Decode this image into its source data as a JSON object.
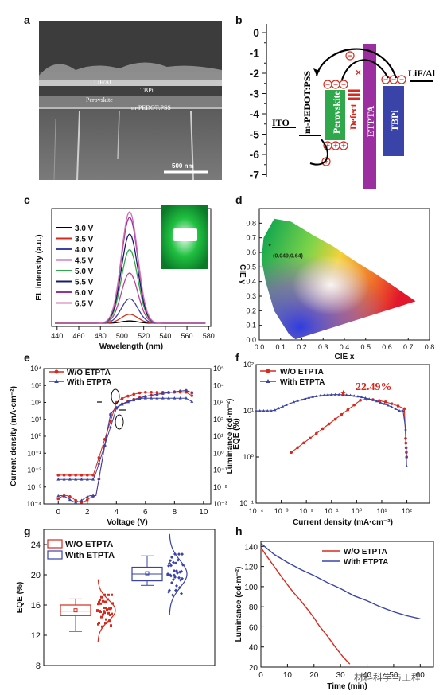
{
  "panel_labels": [
    "a",
    "b",
    "c",
    "d",
    "e",
    "f",
    "g",
    "h"
  ],
  "sem": {
    "labels": [
      "LiF/Al",
      "TBPi",
      "Perovskite",
      "m-PEDOT:PSS"
    ],
    "scale_bar": "500 nm",
    "colors": {
      "bg": "#5a5a5a",
      "layer": "#8a8a8a"
    }
  },
  "energy_diagram": {
    "y_ticks": [
      "0",
      "-1",
      "-2",
      "-3",
      "-4",
      "-5",
      "-6",
      "-7"
    ],
    "layers": [
      {
        "name": "ITO",
        "color": "#000000"
      },
      {
        "name": "m-PEDOT:PSS",
        "color": "#000000"
      },
      {
        "name": "Perovskite",
        "color": "#2ea84a"
      },
      {
        "name": "Defect",
        "color": "#d62a1e"
      },
      {
        "name": "ETPTA",
        "color": "#9b2fa0"
      },
      {
        "name": "TBPi",
        "color": "#3a43a8"
      },
      {
        "name": "LiF/Al",
        "color": "#000000"
      }
    ]
  },
  "chart_data": [
    {
      "id": "c",
      "type": "line",
      "xlabel": "Wavelength (nm)",
      "ylabel": "EL intensity (a.u.)",
      "xlim": [
        435,
        582
      ],
      "x_ticks": [
        440,
        460,
        480,
        500,
        520,
        540,
        560,
        580
      ],
      "peak_nm": 507,
      "fwhm_nm": 18,
      "series": [
        {
          "name": "3.0 V",
          "peak": 0.02,
          "color": "#000000"
        },
        {
          "name": "3.5 V",
          "peak": 0.08,
          "color": "#d62a1e"
        },
        {
          "name": "4.0 V",
          "peak": 0.22,
          "color": "#3a43a8"
        },
        {
          "name": "4.5 V",
          "peak": 0.45,
          "color": "#c0409a"
        },
        {
          "name": "5.0 V",
          "peak": 0.66,
          "color": "#2ea84a"
        },
        {
          "name": "5.5 V",
          "peak": 0.8,
          "color": "#1a1a6a"
        },
        {
          "name": "6.0 V",
          "peak": 0.95,
          "color": "#9b2fa0"
        },
        {
          "name": "6.5 V",
          "peak": 1.0,
          "color": "#d070b0"
        }
      ]
    },
    {
      "id": "d",
      "type": "scatter",
      "xlabel": "CIE x",
      "ylabel": "CIE y",
      "xlim": [
        0,
        0.8
      ],
      "ylim": [
        0,
        0.9
      ],
      "x_ticks": [
        "0.0",
        "0.1",
        "0.2",
        "0.3",
        "0.4",
        "0.5",
        "0.6",
        "0.7",
        "0.8"
      ],
      "y_ticks": [
        "0.0",
        "0.1",
        "0.2",
        "0.3",
        "0.4",
        "0.5",
        "0.6",
        "0.7",
        "0.8"
      ],
      "point": {
        "x": 0.049,
        "y": 0.64,
        "label": "(0.049,0.64)"
      }
    },
    {
      "id": "e",
      "type": "line",
      "xlabel": "Voltage (V)",
      "ylabel": "Current density (mA·cm⁻²)",
      "ylabel2": "Luminance (cd·m⁻²)",
      "xlim": [
        -1,
        10.5
      ],
      "x_ticks": [
        0,
        2,
        4,
        6,
        8,
        10
      ],
      "y_ticks_left": [
        "10⁴",
        "10³",
        "10²",
        "10¹",
        "10⁰",
        "10⁻¹",
        "10⁻²",
        "10⁻³",
        "10⁻⁴"
      ],
      "y_ticks_right": [
        "10⁵",
        "10⁴",
        "10³",
        "10²",
        "10¹",
        "10⁰",
        "10⁻¹",
        "10⁻²",
        "10⁻³"
      ],
      "series": [
        {
          "name": "W/O ETPTA",
          "color": "#d62a1e"
        },
        {
          "name": "With ETPTA",
          "color": "#3a43a8"
        }
      ]
    },
    {
      "id": "f",
      "type": "line",
      "xlabel": "Current density (mA·cm⁻²)",
      "ylabel": "EQE (%)",
      "x_ticks": [
        "10⁻⁴",
        "10⁻³",
        "10⁻²",
        "10⁻¹",
        "10⁰",
        "10¹",
        "10²"
      ],
      "y_ticks": [
        "10²",
        "10¹",
        "10⁰",
        "10⁻¹"
      ],
      "annotation": "22.49%",
      "series": [
        {
          "name": "W/O ETPTA",
          "color": "#d62a1e"
        },
        {
          "name": "With ETPTA",
          "color": "#3a43a8"
        }
      ]
    },
    {
      "id": "g",
      "type": "box",
      "ylabel": "EQE (%)",
      "y_ticks": [
        8,
        12,
        16,
        20,
        24
      ],
      "series": [
        {
          "name": "W/O ETPTA",
          "color": "#d62a1e",
          "min": 12.5,
          "q1": 14.6,
          "median": 15.2,
          "q3": 16.0,
          "max": 16.8,
          "mean": 15.3
        },
        {
          "name": "With ETPTA",
          "color": "#3a43a8",
          "min": 18.6,
          "q1": 19.2,
          "median": 20.1,
          "q3": 21.0,
          "max": 22.5,
          "mean": 20.2
        }
      ]
    },
    {
      "id": "h",
      "type": "line",
      "xlabel": "Time (min)",
      "ylabel": "Luminance (cd·m⁻²)",
      "xlim": [
        0,
        65
      ],
      "ylim": [
        20,
        145
      ],
      "x_ticks": [
        0,
        10,
        20,
        30,
        40,
        50,
        60
      ],
      "y_ticks": [
        20,
        40,
        60,
        80,
        100,
        120,
        140
      ],
      "series": [
        {
          "name": "W/O ETPTA",
          "color": "#d62a1e",
          "x": [
            0,
            2,
            5,
            8,
            10,
            12,
            15,
            18,
            20,
            22,
            25,
            28,
            31,
            33.5
          ],
          "y": [
            139,
            131,
            120,
            109,
            102,
            95,
            86,
            76,
            69,
            61,
            51,
            40,
            30,
            23
          ]
        },
        {
          "name": "With ETPTA",
          "color": "#3a43a8",
          "x": [
            0,
            5,
            10,
            15,
            20,
            25,
            30,
            35,
            40,
            45,
            50,
            55,
            60
          ],
          "y": [
            143,
            132,
            124,
            117,
            111,
            104,
            98,
            91,
            86,
            80,
            75,
            71,
            68
          ]
        }
      ]
    }
  ],
  "watermark": "材料科学与工程"
}
